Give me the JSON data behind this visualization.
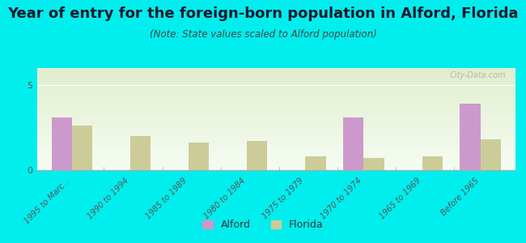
{
  "title": "Year of entry for the foreign-born population in Alford, Florida",
  "subtitle": "(Note: State values scaled to Alford population)",
  "categories": [
    "1995 to Marc...",
    "1990 to 1994",
    "1985 to 1989",
    "1980 to 1984",
    "1975 to 1979",
    "1970 to 1974",
    "1965 to 1969",
    "Before 1965"
  ],
  "alford_values": [
    3.1,
    0,
    0,
    0,
    0,
    3.1,
    0,
    3.9
  ],
  "florida_values": [
    2.6,
    2.0,
    1.6,
    1.7,
    0.8,
    0.7,
    0.8,
    1.8
  ],
  "alford_color": "#cc99cc",
  "florida_color": "#cccc99",
  "background_color": "#00eeee",
  "ylim": [
    0,
    6
  ],
  "yticks": [
    0,
    5
  ],
  "bar_width": 0.35,
  "title_fontsize": 13,
  "subtitle_fontsize": 8.5,
  "title_color": "#1a1a2e",
  "subtitle_color": "#444444",
  "watermark": "City-Data.com"
}
